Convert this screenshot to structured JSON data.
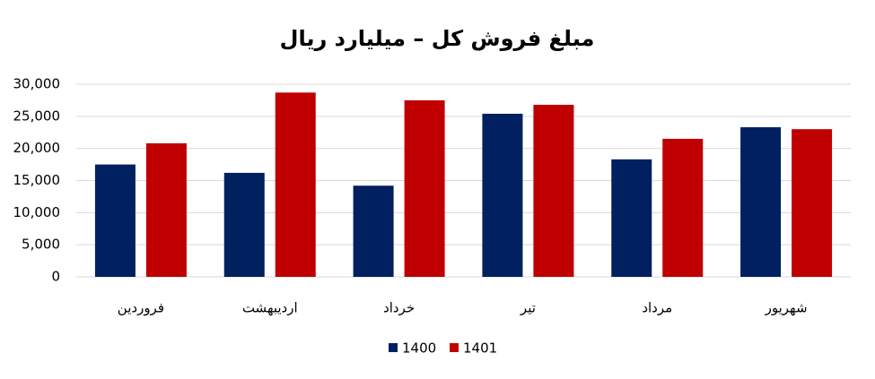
{
  "chart_data": {
    "type": "bar",
    "title": "مبلغ فروش کل – میلیارد ریال",
    "categories": [
      "فروردین",
      "اردیبهشت",
      "خرداد",
      "تیر",
      "مرداد",
      "شهریور"
    ],
    "series": [
      {
        "name": "1400",
        "color": "#002060",
        "values": [
          17500,
          16200,
          14200,
          25400,
          18300,
          23300
        ]
      },
      {
        "name": "1401",
        "color": "#c00000",
        "values": [
          20800,
          28700,
          27500,
          26800,
          21500,
          23000
        ]
      }
    ],
    "ylim": [
      0,
      30000
    ],
    "yticks": [
      0,
      {
        "value": 5000,
        "label": "5,000"
      },
      {
        "value": 10000,
        "label": "10,000"
      },
      {
        "value": 15000,
        "label": "15,000"
      },
      {
        "value": 20000,
        "label": "20,000"
      },
      {
        "value": 25000,
        "label": "25,000"
      },
      {
        "value": 30000,
        "label": "30,000"
      }
    ],
    "grid": true,
    "legend": "bottom"
  }
}
